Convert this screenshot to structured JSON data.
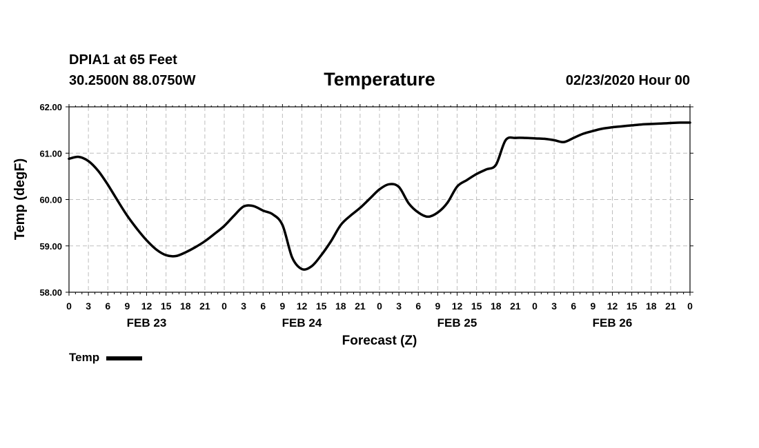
{
  "header": {
    "station": "DPIA1 at 65 Feet",
    "coordinates": "30.2500N 88.0750W",
    "run_time": "02/23/2020 Hour 00"
  },
  "chart_data": {
    "type": "line",
    "title": "Temperature",
    "xlabel": "Forecast (Z)",
    "ylabel": "Temp (degF)",
    "x_unit": "forecast hour",
    "xlim": [
      0,
      96
    ],
    "ylim": [
      58.0,
      62.0
    ],
    "y_ticks": [
      "58.00",
      "59.00",
      "60.00",
      "61.00",
      "62.00"
    ],
    "x_tick_labels": [
      "0",
      "3",
      "6",
      "9",
      "12",
      "15",
      "18",
      "21",
      "0",
      "3",
      "6",
      "9",
      "12",
      "15",
      "18",
      "21",
      "0",
      "3",
      "6",
      "9",
      "12",
      "15",
      "18",
      "21",
      "0",
      "3",
      "6",
      "9",
      "12",
      "15",
      "18",
      "21",
      "0"
    ],
    "day_labels": [
      "FEB 23",
      "FEB 24",
      "FEB 25",
      "FEB 26"
    ],
    "grid": true,
    "legend_position": "bottom-left",
    "series": [
      {
        "name": "Temp",
        "color": "#000000",
        "x": [
          0,
          1.5,
          3,
          4.5,
          6,
          7.5,
          9,
          10.5,
          12,
          13.5,
          15,
          16.5,
          18,
          19.5,
          21,
          22.5,
          24,
          25.5,
          27,
          28.5,
          30,
          31.5,
          33,
          34.5,
          36,
          37.5,
          39,
          40.5,
          42,
          43.5,
          45,
          46.5,
          48,
          49.5,
          51,
          52.5,
          54,
          55.5,
          57,
          58.5,
          60,
          61.5,
          63,
          64.5,
          66,
          67.5,
          69,
          70.5,
          72,
          73.5,
          75,
          76.5,
          78,
          79.5,
          81,
          82.5,
          84,
          85.5,
          87,
          88.5,
          90,
          91.5,
          93,
          94.5,
          96
        ],
        "y": [
          60.88,
          60.92,
          60.83,
          60.62,
          60.32,
          59.98,
          59.65,
          59.37,
          59.12,
          58.92,
          58.8,
          58.78,
          58.86,
          58.97,
          59.1,
          59.26,
          59.43,
          59.65,
          59.85,
          59.86,
          59.76,
          59.68,
          59.45,
          58.75,
          58.5,
          58.56,
          58.8,
          59.1,
          59.45,
          59.65,
          59.82,
          60.02,
          60.22,
          60.33,
          60.27,
          59.92,
          59.72,
          59.63,
          59.72,
          59.93,
          60.28,
          60.42,
          60.55,
          60.65,
          60.75,
          61.28,
          61.33,
          61.33,
          61.32,
          61.31,
          61.28,
          61.24,
          61.33,
          61.42,
          61.48,
          61.53,
          61.56,
          61.58,
          61.6,
          61.62,
          61.63,
          61.64,
          61.65,
          61.66,
          61.66
        ]
      }
    ]
  }
}
